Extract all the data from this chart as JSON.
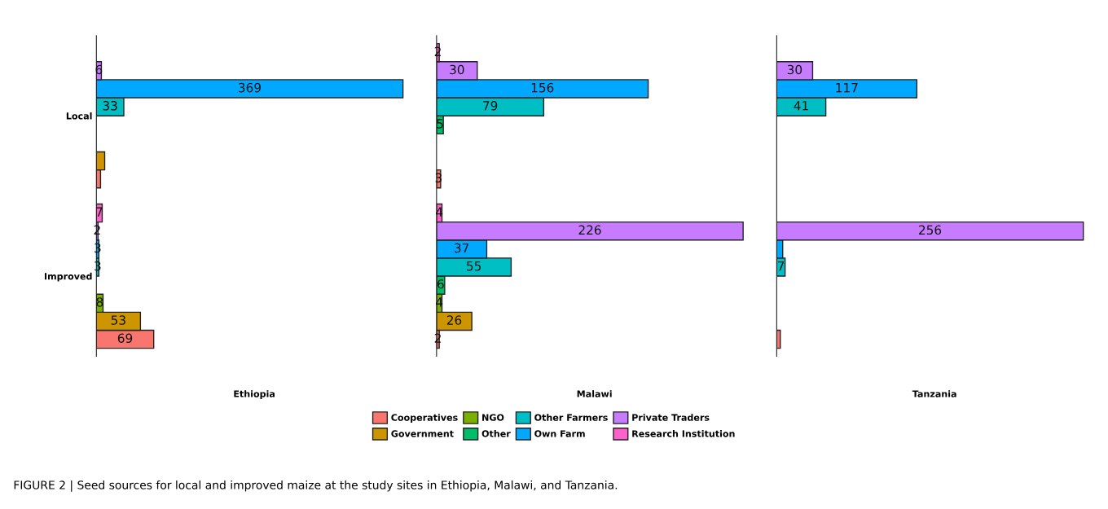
{
  "chart_data": [
    {
      "type": "bar",
      "orientation": "horizontal",
      "xlabel": "Ethiopia",
      "categories": [
        "Local",
        "Improved"
      ],
      "tick_labels": "y",
      "legend": "bottom",
      "annotations": [
        "FIGURE 2 | Seed sources for local and improved maize at the study sites in Ethiopia, Malawi, and Tanzania."
      ],
      "series": [
        {
          "name": "Cooperatives",
          "color": "#f8766d",
          "values": [
            5,
            69
          ],
          "value_labels": [
            null,
            "69"
          ]
        },
        {
          "name": "Government",
          "color": "#cd9600",
          "values": [
            10,
            53
          ],
          "value_labels": [
            null,
            "53"
          ]
        },
        {
          "name": "NGO",
          "color": "#7cae00",
          "values": [
            null,
            8
          ],
          "value_labels": [
            null,
            "8"
          ]
        },
        {
          "name": "Other",
          "color": "#00be67",
          "values": [
            null,
            null
          ],
          "value_labels": [
            null,
            null
          ]
        },
        {
          "name": "Other Farmers",
          "color": "#00bfc4",
          "values": [
            33,
            3
          ],
          "value_labels": [
            "33",
            "3"
          ]
        },
        {
          "name": "Own Farm",
          "color": "#00a9ff",
          "values": [
            369,
            3
          ],
          "value_labels": [
            "369",
            "3"
          ]
        },
        {
          "name": "Private Traders",
          "color": "#c77cff",
          "values": [
            6,
            2
          ],
          "value_labels": [
            "6",
            "2"
          ]
        },
        {
          "name": "Research Institution",
          "color": "#ff61cc",
          "values": [
            null,
            7
          ],
          "value_labels": [
            null,
            "7"
          ]
        }
      ]
    },
    {
      "type": "bar",
      "orientation": "horizontal",
      "xlabel": "Malawi",
      "tick_labels": false,
      "series": [
        {
          "color": "#f8766d",
          "values": [
            3,
            2
          ],
          "value_labels": [
            "3",
            "2"
          ]
        },
        {
          "color": "#cd9600",
          "values": [
            null,
            26
          ],
          "value_labels": [
            null,
            "26"
          ]
        },
        {
          "color": "#7cae00",
          "values": [
            null,
            4
          ],
          "value_labels": [
            null,
            "4"
          ]
        },
        {
          "color": "#00be67",
          "values": [
            5,
            6
          ],
          "value_labels": [
            "5",
            "6"
          ]
        },
        {
          "color": "#00bfc4",
          "values": [
            79,
            55
          ],
          "value_labels": [
            "79",
            "55"
          ]
        },
        {
          "color": "#00a9ff",
          "values": [
            156,
            37
          ],
          "value_labels": [
            "156",
            "37"
          ]
        },
        {
          "color": "#c77cff",
          "values": [
            30,
            226
          ],
          "value_labels": [
            "30",
            "226"
          ]
        },
        {
          "color": "#ff61cc",
          "values": [
            2,
            4
          ],
          "value_labels": [
            "2",
            "4"
          ]
        }
      ]
    },
    {
      "type": "bar",
      "orientation": "horizontal",
      "xlabel": "Tanzania",
      "tick_labels": false,
      "series": [
        {
          "color": "#f8766d",
          "values": [
            null,
            3
          ],
          "value_labels": [
            null,
            null
          ]
        },
        {
          "values": [
            null,
            null
          ]
        },
        {
          "values": [
            null,
            null
          ]
        },
        {
          "values": [
            null,
            null
          ]
        },
        {
          "color": "#00bfc4",
          "values": [
            41,
            7
          ],
          "value_labels": [
            "41",
            "7"
          ]
        },
        {
          "color": "#00a9ff",
          "values": [
            117,
            5
          ],
          "value_labels": [
            "117",
            null
          ]
        },
        {
          "color": "#c77cff",
          "values": [
            30,
            256
          ],
          "value_labels": [
            "30",
            "256"
          ]
        },
        {
          "values": [
            null,
            null
          ]
        }
      ]
    }
  ]
}
